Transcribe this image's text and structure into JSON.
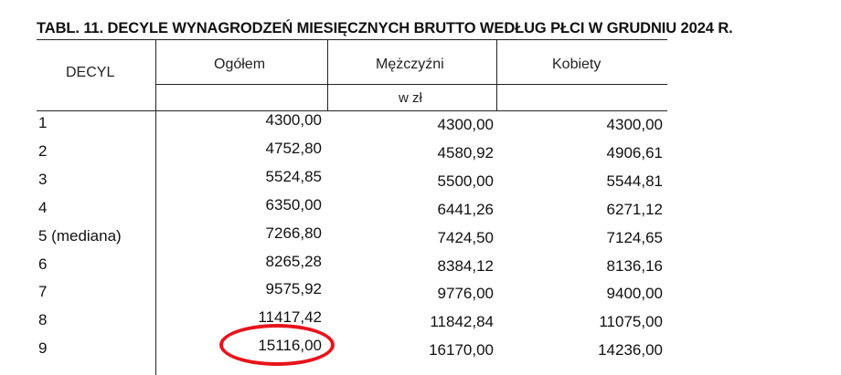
{
  "title": "TABL. 11. DECYLE WYNAGRODZEŃ MIESIĘCZNYCH BRUTTO WEDŁUG PŁCI W GRUDNIU 2024 R.",
  "headers": {
    "decyl": "DECYL",
    "ogolem": "Ogółem",
    "mezczyzni": "Mężczyźni",
    "kobiety": "Kobiety",
    "unit": "w zł"
  },
  "rows": [
    {
      "decyl": "1",
      "ogolem": "4300,00",
      "mezczyzni": "4300,00",
      "kobiety": "4300,00"
    },
    {
      "decyl": "2",
      "ogolem": "4752,80",
      "mezczyzni": "4580,92",
      "kobiety": "4906,61"
    },
    {
      "decyl": "3",
      "ogolem": "5524,85",
      "mezczyzni": "5500,00",
      "kobiety": "5544,81"
    },
    {
      "decyl": "4",
      "ogolem": "6350,00",
      "mezczyzni": "6441,26",
      "kobiety": "6271,12"
    },
    {
      "decyl": "5  (mediana)",
      "ogolem": "7266,80",
      "mezczyzni": "7424,50",
      "kobiety": "7124,65"
    },
    {
      "decyl": "6",
      "ogolem": "8265,28",
      "mezczyzni": "8384,12",
      "kobiety": "8136,16"
    },
    {
      "decyl": "7",
      "ogolem": "9575,92",
      "mezczyzni": "9776,00",
      "kobiety": "9400,00"
    },
    {
      "decyl": "8",
      "ogolem": "11417,42",
      "mezczyzni": "11842,84",
      "kobiety": "11075,00"
    },
    {
      "decyl": "9",
      "ogolem": "15116,00",
      "mezczyzni": "16170,00",
      "kobiety": "14236,00"
    }
  ],
  "highlight": {
    "color": "#e8141b"
  }
}
